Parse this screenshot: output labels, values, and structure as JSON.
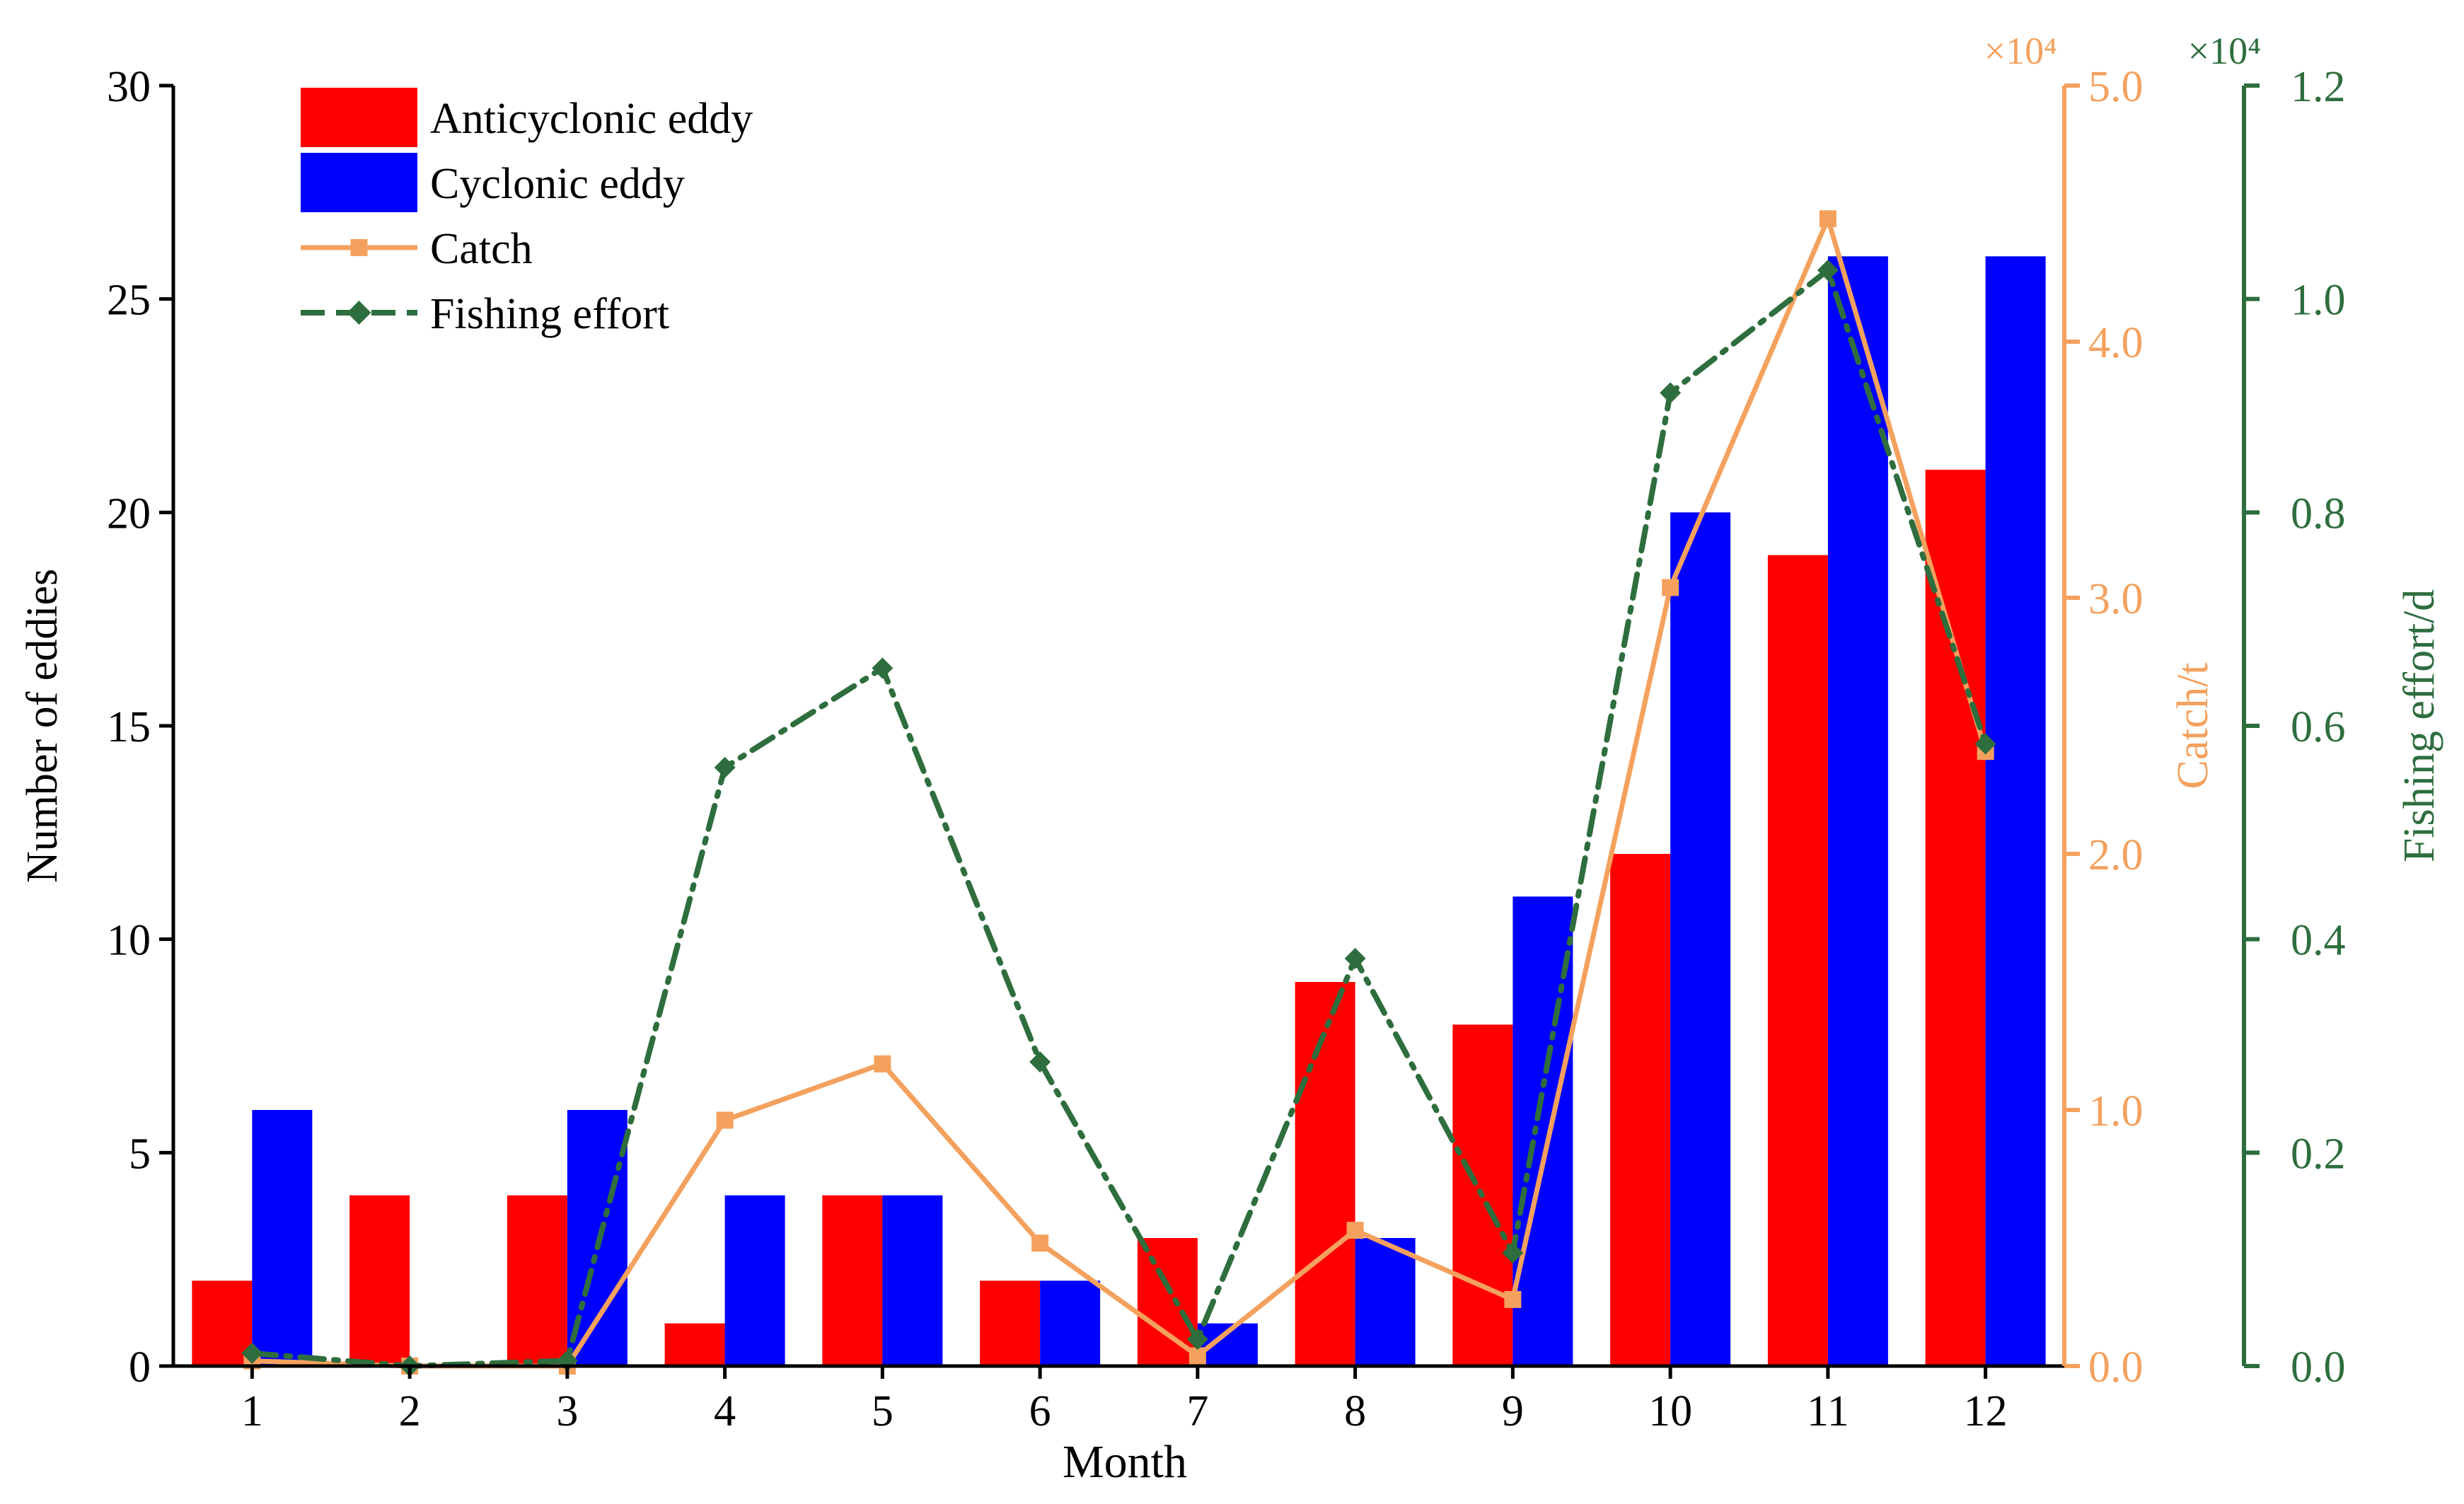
{
  "chart_data": {
    "type": "bar",
    "xlabel": "Month",
    "categories": [
      "1",
      "2",
      "3",
      "4",
      "5",
      "6",
      "7",
      "8",
      "9",
      "10",
      "11",
      "12"
    ],
    "series": [
      {
        "name": "Anticyclonic eddy",
        "kind": "bar",
        "axis": "left",
        "color": "#ff0000",
        "values": [
          2,
          4,
          4,
          1,
          4,
          2,
          3,
          9,
          8,
          12,
          19,
          21
        ]
      },
      {
        "name": "Cyclonic eddy",
        "kind": "bar",
        "axis": "left",
        "color": "#0000ff",
        "values": [
          6,
          0,
          6,
          4,
          4,
          2,
          1,
          3,
          11,
          20,
          26,
          26
        ]
      },
      {
        "name": "Catch",
        "kind": "line",
        "axis": "catch",
        "color": "#f4a15e",
        "values": [
          0.02,
          0.0,
          0.0,
          0.96,
          1.18,
          0.48,
          0.04,
          0.53,
          0.26,
          3.04,
          4.48,
          2.4
        ]
      },
      {
        "name": "Fishing effort",
        "kind": "line",
        "axis": "effort",
        "color": "#2e6e3e",
        "values": [
          0.012,
          0.0,
          0.005,
          0.561,
          0.654,
          0.285,
          0.025,
          0.382,
          0.106,
          0.912,
          1.027,
          0.583
        ]
      }
    ],
    "legend": {
      "position": "top-left",
      "entries": [
        "Anticyclonic eddy",
        "Cyclonic eddy",
        "Catch",
        "Fishing effort"
      ]
    },
    "axes": {
      "left": {
        "label": "Number of eddies",
        "range": [
          0,
          30
        ],
        "ticks": [
          "0",
          "5",
          "10",
          "15",
          "20",
          "25",
          "30"
        ],
        "color": "#000000"
      },
      "catch": {
        "label": "Catch/t",
        "multiplier": "×10⁴",
        "range": [
          0,
          5
        ],
        "ticks": [
          "0.0",
          "1.0",
          "2.0",
          "3.0",
          "4.0",
          "5.0"
        ],
        "color": "#f4a15e"
      },
      "effort": {
        "label": "Fishing effort/d",
        "multiplier": "×10⁴",
        "range": [
          0,
          1.2
        ],
        "ticks": [
          "0.0",
          "0.2",
          "0.4",
          "0.6",
          "0.8",
          "1.0",
          "1.2"
        ],
        "color": "#2e6e3e"
      }
    }
  }
}
